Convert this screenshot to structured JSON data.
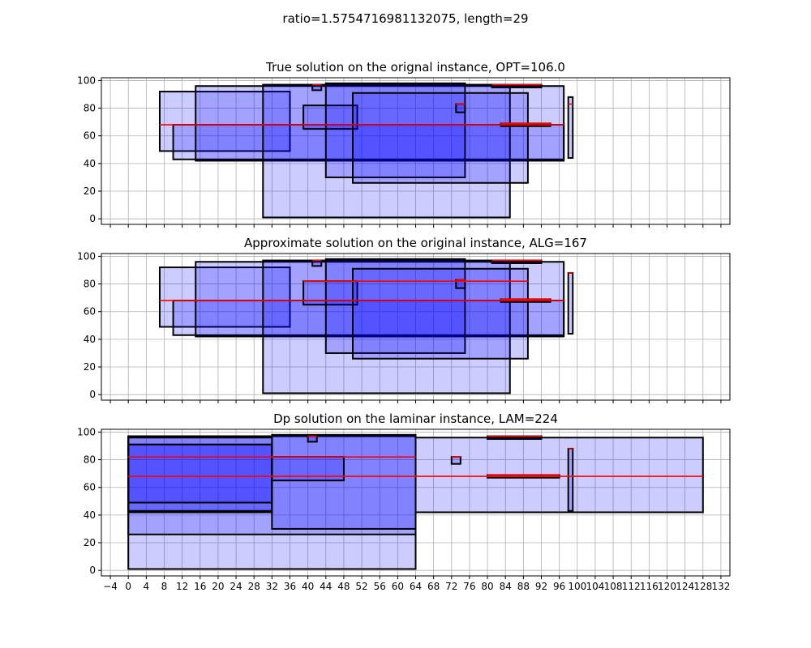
{
  "figure": {
    "suptitle": "ratio=1.5754716981132075, length=29"
  },
  "chart_data": [
    {
      "type": "rectangles",
      "title": "True solution on the orignal instance, OPT=106.0",
      "xlim": [
        -6,
        134
      ],
      "ylim": [
        -4,
        102
      ],
      "x_ticks": [
        -4,
        0,
        4,
        8,
        12,
        16,
        20,
        24,
        28,
        32,
        36,
        40,
        44,
        48,
        52,
        56,
        60,
        64,
        68,
        72,
        76,
        80,
        84,
        88,
        92,
        96,
        100,
        104,
        108,
        112,
        116,
        120,
        124,
        128,
        132
      ],
      "y_ticks": [
        0,
        20,
        40,
        60,
        80,
        100
      ],
      "show_x_tick_labels": false,
      "grid": true,
      "rects": [
        {
          "x0": 7,
          "x1": 36,
          "y0": 49,
          "y1": 92
        },
        {
          "x0": 10,
          "x1": 97,
          "y0": 43,
          "y1": 68
        },
        {
          "x0": 15,
          "x1": 97,
          "y0": 42,
          "y1": 96
        },
        {
          "x0": 30,
          "x1": 85,
          "y0": 1,
          "y1": 97
        },
        {
          "x0": 39,
          "x1": 51,
          "y0": 65,
          "y1": 82
        },
        {
          "x0": 41,
          "x1": 43,
          "y0": 93,
          "y1": 97
        },
        {
          "x0": 44,
          "x1": 75,
          "y0": 30,
          "y1": 98
        },
        {
          "x0": 50,
          "x1": 89,
          "y0": 26,
          "y1": 91
        },
        {
          "x0": 73,
          "x1": 75,
          "y0": 77,
          "y1": 83
        },
        {
          "x0": 81,
          "x1": 92,
          "y0": 95,
          "y1": 97
        },
        {
          "x0": 83,
          "x1": 94,
          "y0": 67,
          "y1": 69
        },
        {
          "x0": 98,
          "x1": 99,
          "y0": 44,
          "y1": 88
        }
      ],
      "red_lines": [
        {
          "x0": 7,
          "x1": 97,
          "y": 68
        },
        {
          "x0": 41,
          "x1": 43,
          "y": 97
        },
        {
          "x0": 73,
          "x1": 75,
          "y": 83
        },
        {
          "x0": 81,
          "x1": 92,
          "y": 97
        },
        {
          "x0": 83,
          "x1": 94,
          "y": 69
        },
        {
          "x0": 98,
          "x1": 99,
          "y": 83
        }
      ]
    },
    {
      "type": "rectangles",
      "title": "Approximate solution on the original instance, ALG=167",
      "xlim": [
        -6,
        134
      ],
      "ylim": [
        -4,
        102
      ],
      "x_ticks": [
        -4,
        0,
        4,
        8,
        12,
        16,
        20,
        24,
        28,
        32,
        36,
        40,
        44,
        48,
        52,
        56,
        60,
        64,
        68,
        72,
        76,
        80,
        84,
        88,
        92,
        96,
        100,
        104,
        108,
        112,
        116,
        120,
        124,
        128,
        132
      ],
      "y_ticks": [
        0,
        20,
        40,
        60,
        80,
        100
      ],
      "show_x_tick_labels": false,
      "grid": true,
      "rects": [
        {
          "x0": 7,
          "x1": 36,
          "y0": 49,
          "y1": 92
        },
        {
          "x0": 10,
          "x1": 97,
          "y0": 43,
          "y1": 68
        },
        {
          "x0": 15,
          "x1": 97,
          "y0": 42,
          "y1": 96
        },
        {
          "x0": 30,
          "x1": 85,
          "y0": 1,
          "y1": 97
        },
        {
          "x0": 39,
          "x1": 51,
          "y0": 65,
          "y1": 82
        },
        {
          "x0": 41,
          "x1": 43,
          "y0": 93,
          "y1": 97
        },
        {
          "x0": 44,
          "x1": 75,
          "y0": 30,
          "y1": 98
        },
        {
          "x0": 50,
          "x1": 89,
          "y0": 26,
          "y1": 91
        },
        {
          "x0": 73,
          "x1": 75,
          "y0": 77,
          "y1": 83
        },
        {
          "x0": 81,
          "x1": 92,
          "y0": 95,
          "y1": 97
        },
        {
          "x0": 83,
          "x1": 94,
          "y0": 67,
          "y1": 69
        },
        {
          "x0": 98,
          "x1": 99,
          "y0": 44,
          "y1": 88
        }
      ],
      "red_lines": [
        {
          "x0": 7,
          "x1": 97,
          "y": 68
        },
        {
          "x0": 39,
          "x1": 89,
          "y": 82
        },
        {
          "x0": 41,
          "x1": 43,
          "y": 97
        },
        {
          "x0": 73,
          "x1": 75,
          "y": 83
        },
        {
          "x0": 81,
          "x1": 92,
          "y": 97
        },
        {
          "x0": 83,
          "x1": 94,
          "y": 69
        },
        {
          "x0": 98,
          "x1": 99,
          "y": 88
        }
      ]
    },
    {
      "type": "rectangles",
      "title": "Dp solution on the laminar instance, LAM=224",
      "xlim": [
        -6,
        134
      ],
      "ylim": [
        -4,
        102
      ],
      "x_ticks": [
        -4,
        0,
        4,
        8,
        12,
        16,
        20,
        24,
        28,
        32,
        36,
        40,
        44,
        48,
        52,
        56,
        60,
        64,
        68,
        72,
        76,
        80,
        84,
        88,
        92,
        96,
        100,
        104,
        108,
        112,
        116,
        120,
        124,
        128,
        132
      ],
      "x_tick_labels": [
        "−4",
        "0",
        "4",
        "8",
        "12",
        "16",
        "20",
        "24",
        "28",
        "32",
        "36",
        "40",
        "44",
        "48",
        "52",
        "56",
        "60",
        "64",
        "68",
        "72",
        "76",
        "80",
        "84",
        "88",
        "92",
        "96",
        "100",
        "104",
        "108",
        "112",
        "116",
        "120",
        "124",
        "128",
        "132"
      ],
      "y_ticks": [
        0,
        20,
        40,
        60,
        80,
        100
      ],
      "show_x_tick_labels": true,
      "grid": true,
      "rects": [
        {
          "x0": 0,
          "x1": 64,
          "y0": 1,
          "y1": 97
        },
        {
          "x0": 0,
          "x1": 64,
          "y0": 26,
          "y1": 97
        },
        {
          "x0": 0,
          "x1": 32,
          "y0": 42,
          "y1": 96
        },
        {
          "x0": 0,
          "x1": 32,
          "y0": 43,
          "y1": 91
        },
        {
          "x0": 0,
          "x1": 32,
          "y0": 49,
          "y1": 91
        },
        {
          "x0": 32,
          "x1": 64,
          "y0": 30,
          "y1": 98
        },
        {
          "x0": 32,
          "x1": 48,
          "y0": 65,
          "y1": 82
        },
        {
          "x0": 40,
          "x1": 42,
          "y0": 93,
          "y1": 97
        },
        {
          "x0": 64,
          "x1": 128,
          "y0": 42,
          "y1": 96
        },
        {
          "x0": 72,
          "x1": 74,
          "y0": 77,
          "y1": 82
        },
        {
          "x0": 80,
          "x1": 92,
          "y0": 95,
          "y1": 97
        },
        {
          "x0": 80,
          "x1": 96,
          "y0": 67,
          "y1": 69
        },
        {
          "x0": 98,
          "x1": 99,
          "y0": 43,
          "y1": 88
        }
      ],
      "red_lines": [
        {
          "x0": 0,
          "x1": 64,
          "y": 82
        },
        {
          "x0": 0,
          "x1": 128,
          "y": 68
        },
        {
          "x0": 40,
          "x1": 42,
          "y": 97
        },
        {
          "x0": 72,
          "x1": 74,
          "y": 82
        },
        {
          "x0": 80,
          "x1": 92,
          "y": 97
        },
        {
          "x0": 80,
          "x1": 96,
          "y": 69
        },
        {
          "x0": 98,
          "x1": 99,
          "y": 88
        }
      ]
    }
  ],
  "style": {
    "rect_fill": "#0000ff",
    "rect_fill_opacity": 0.2,
    "rect_edge": "#000000",
    "red_line": "#ff0000",
    "grid_color": "#b0b0b0"
  }
}
